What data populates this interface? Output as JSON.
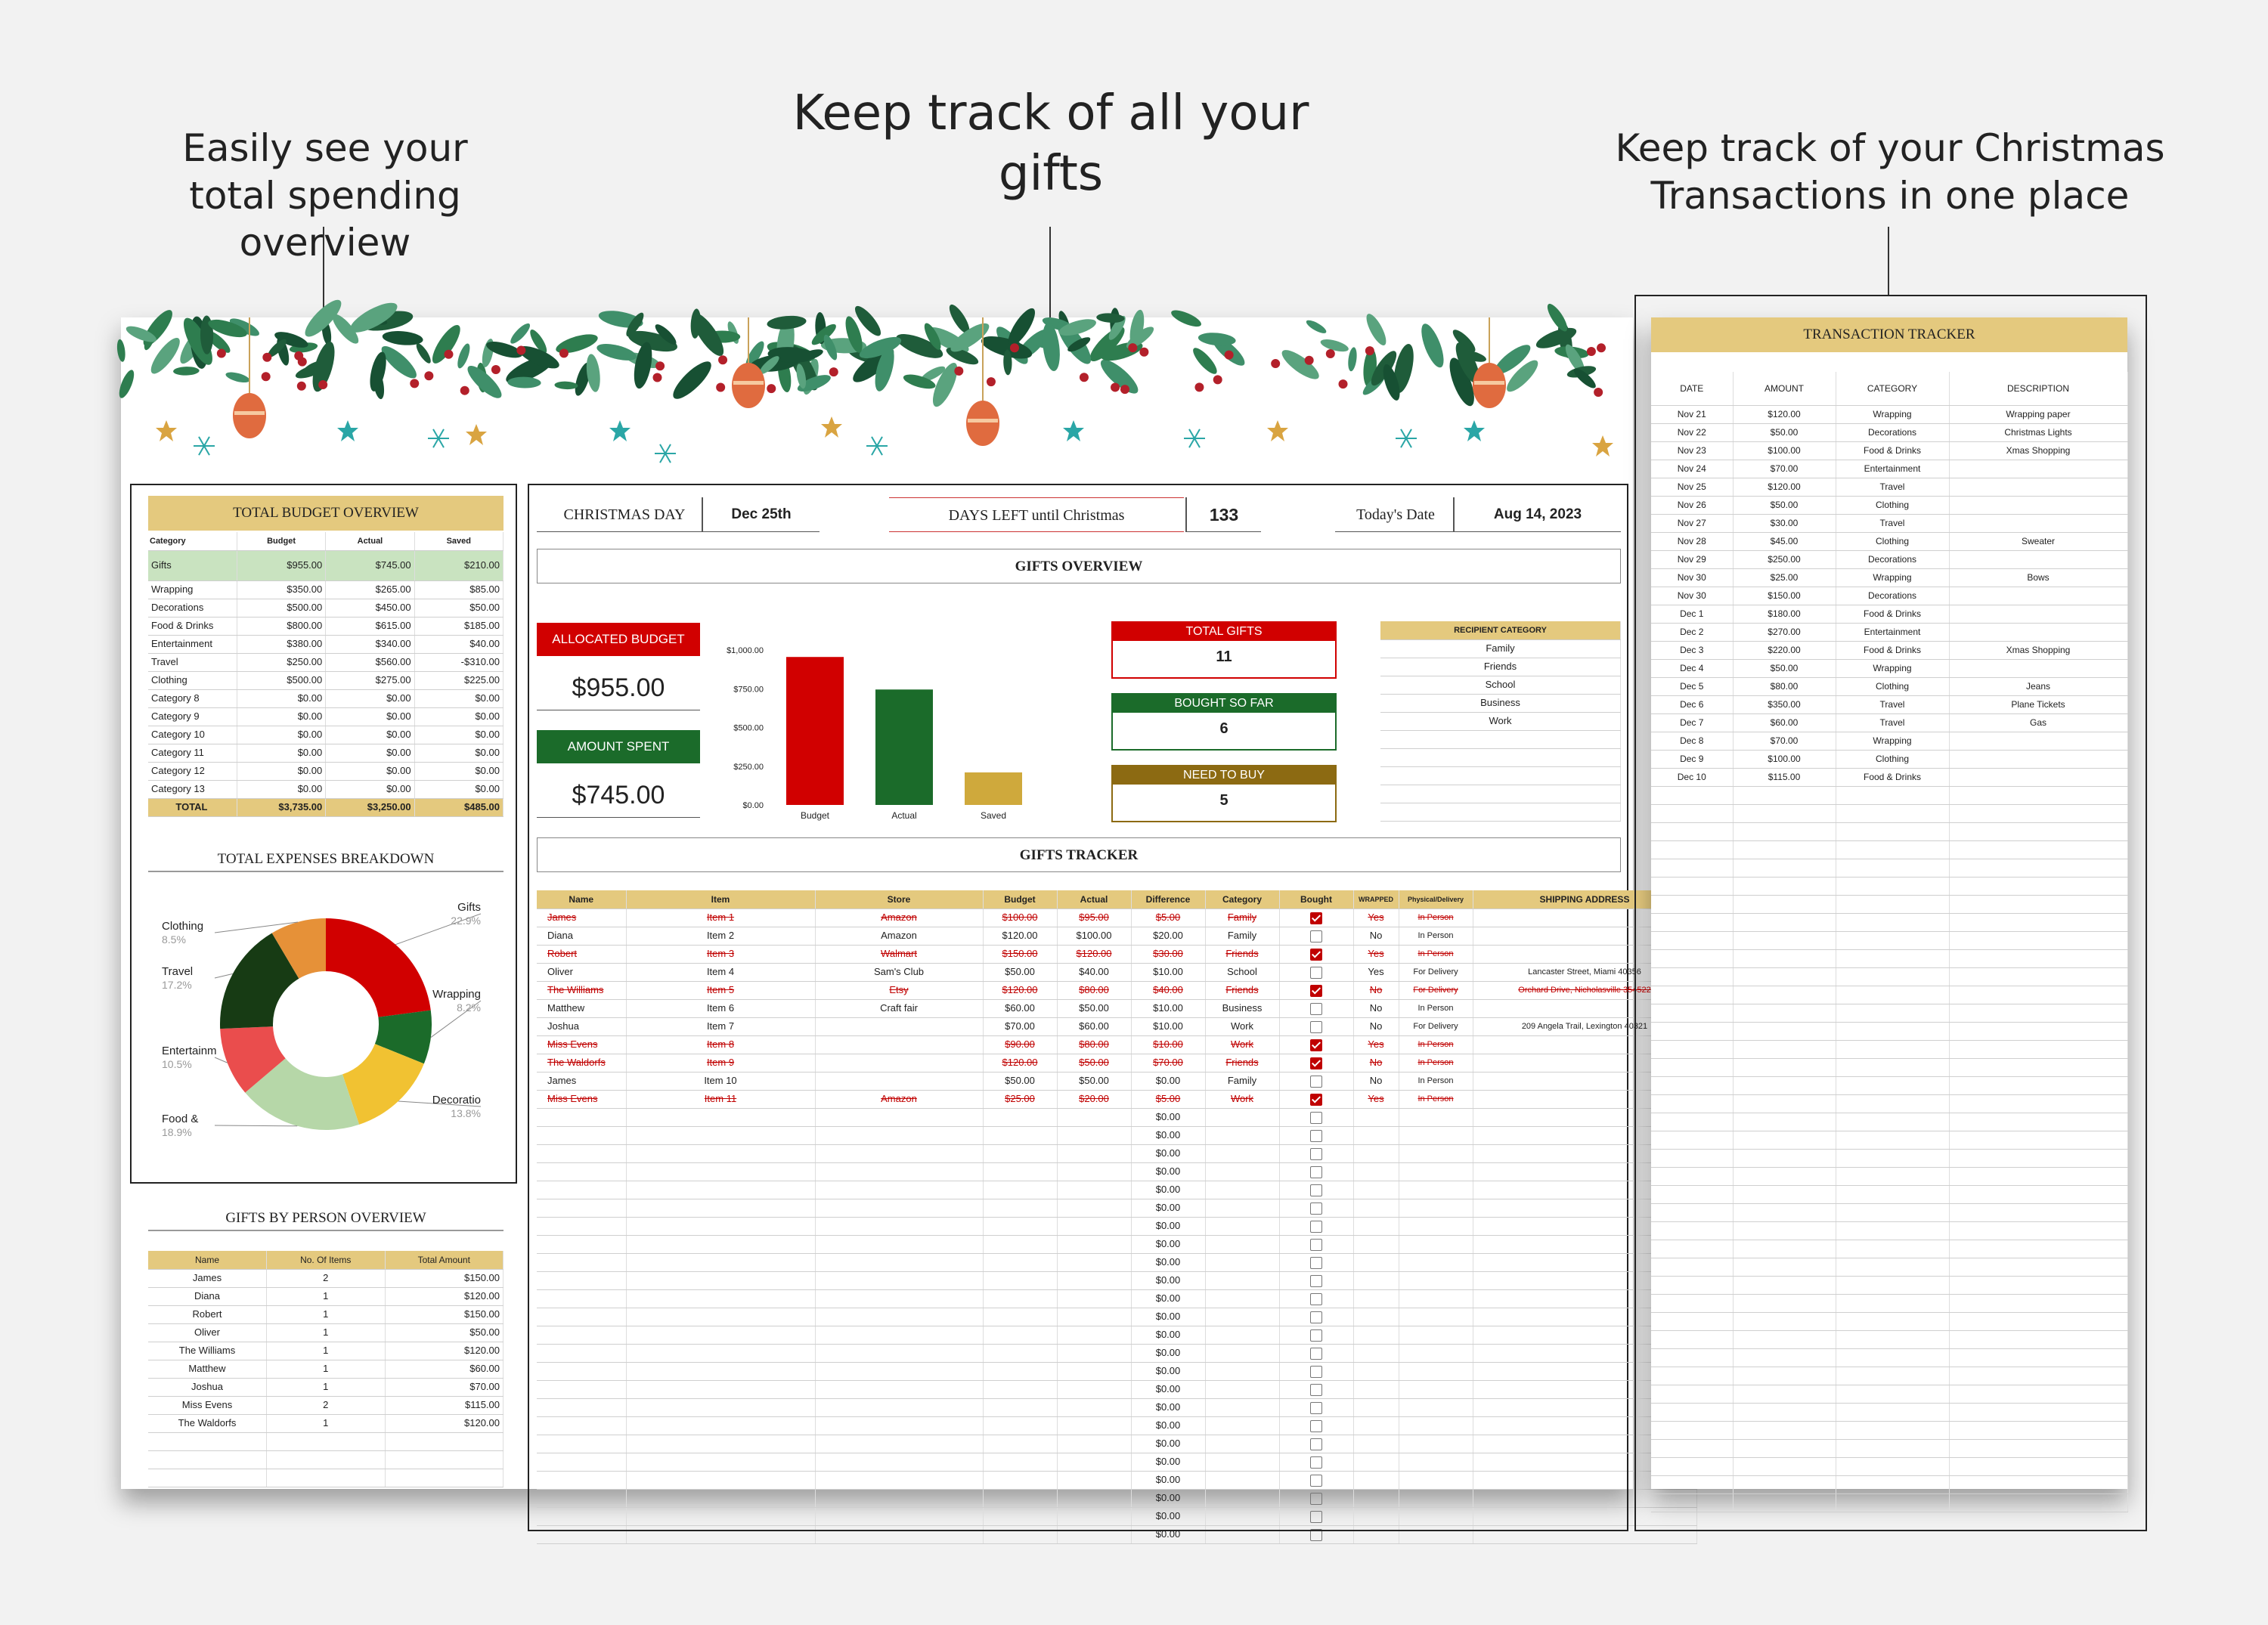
{
  "captions": {
    "left": "Easily see your total spending overview",
    "center": "Keep track of all your gifts",
    "right": "Keep track of your Christmas Transactions in one place"
  },
  "header": {
    "christmas_label": "CHRISTMAS DAY",
    "christmas_value": "Dec 25th",
    "days_label": "DAYS LEFT until Christmas",
    "days_value": "133",
    "today_label": "Today's Date",
    "today_value": "Aug 14, 2023"
  },
  "colors": {
    "red": "#d10000",
    "green": "#1b6b2a",
    "gold": "#e4c97e",
    "mustard": "#cfa93c",
    "olive": "#8c6a12"
  },
  "budget_overview": {
    "title": "TOTAL BUDGET OVERVIEW",
    "columns": [
      "Category",
      "Budget",
      "Actual",
      "Saved"
    ],
    "rows": [
      [
        "Gifts",
        "$955.00",
        "$745.00",
        "$210.00"
      ],
      [
        "Wrapping",
        "$350.00",
        "$265.00",
        "$85.00"
      ],
      [
        "Decorations",
        "$500.00",
        "$450.00",
        "$50.00"
      ],
      [
        "Food & Drinks",
        "$800.00",
        "$615.00",
        "$185.00"
      ],
      [
        "Entertainment",
        "$380.00",
        "$340.00",
        "$40.00"
      ],
      [
        "Travel",
        "$250.00",
        "$560.00",
        "-$310.00"
      ],
      [
        "Clothing",
        "$500.00",
        "$275.00",
        "$225.00"
      ],
      [
        "Category 8",
        "$0.00",
        "$0.00",
        "$0.00"
      ],
      [
        "Category 9",
        "$0.00",
        "$0.00",
        "$0.00"
      ],
      [
        "Category 10",
        "$0.00",
        "$0.00",
        "$0.00"
      ],
      [
        "Category 11",
        "$0.00",
        "$0.00",
        "$0.00"
      ],
      [
        "Category 12",
        "$0.00",
        "$0.00",
        "$0.00"
      ],
      [
        "Category 13",
        "$0.00",
        "$0.00",
        "$0.00"
      ]
    ],
    "total": [
      "TOTAL",
      "$3,735.00",
      "$3,250.00",
      "$485.00"
    ]
  },
  "expenses": {
    "title": "TOTAL EXPENSES BREAKDOWN",
    "slices": [
      {
        "label": "Gifts",
        "pct": "22.9%",
        "value": 22.9,
        "color": "#d10000"
      },
      {
        "label": "Wrapping",
        "pct": "8.2%",
        "value": 8.2,
        "color": "#1b6b2a"
      },
      {
        "label": "Decoratio",
        "pct": "13.8%",
        "value": 13.8,
        "color": "#f1c232"
      },
      {
        "label": "Food &",
        "pct": "18.9%",
        "value": 18.9,
        "color": "#b6d7a8"
      },
      {
        "label": "Entertainm",
        "pct": "10.5%",
        "value": 10.5,
        "color": "#ea4d4d"
      },
      {
        "label": "Travel",
        "pct": "17.2%",
        "value": 17.2,
        "color": "#173b14"
      },
      {
        "label": "Clothing",
        "pct": "8.5%",
        "value": 8.5,
        "color": "#e69138"
      }
    ]
  },
  "gifts_by_person": {
    "title": "GIFTS BY PERSON OVERVIEW",
    "columns": [
      "Name",
      "No. Of Items",
      "Total Amount"
    ],
    "rows": [
      [
        "James",
        "2",
        "$150.00"
      ],
      [
        "Diana",
        "1",
        "$120.00"
      ],
      [
        "Robert",
        "1",
        "$150.00"
      ],
      [
        "Oliver",
        "1",
        "$50.00"
      ],
      [
        "The Williams",
        "1",
        "$120.00"
      ],
      [
        "Matthew",
        "1",
        "$60.00"
      ],
      [
        "Joshua",
        "1",
        "$70.00"
      ],
      [
        "Miss Evens",
        "2",
        "$115.00"
      ],
      [
        "The Waldorfs",
        "1",
        "$120.00"
      ]
    ]
  },
  "gifts_overview": {
    "title": "GIFTS OVERVIEW",
    "allocated_label": "ALLOCATED BUDGET",
    "allocated_value": "$955.00",
    "spent_label": "AMOUNT SPENT",
    "spent_value": "$745.00",
    "total_gifts_label": "TOTAL GIFTS",
    "total_gifts_value": "11",
    "bought_label": "BOUGHT SO FAR",
    "bought_value": "6",
    "need_label": "NEED TO BUY",
    "need_value": "5",
    "recipient_title": "RECIPIENT CATEGORY",
    "recipients": [
      "Family",
      "Friends",
      "School",
      "Business",
      "Work"
    ]
  },
  "chart_data": {
    "type": "bar",
    "categories": [
      "Budget",
      "Actual",
      "Saved"
    ],
    "values": [
      955,
      745,
      210
    ],
    "ylim": [
      0,
      1000
    ],
    "yticks": [
      "$0.00",
      "$250.00",
      "$500.00",
      "$750.00",
      "$1,000.00"
    ],
    "colors": [
      "#d10000",
      "#1b6b2a",
      "#cfa93c"
    ],
    "grid": false,
    "legend": "none"
  },
  "gifts_tracker": {
    "title": "GIFTS TRACKER",
    "columns": [
      "Name",
      "Item",
      "Store",
      "Budget",
      "Actual",
      "Difference",
      "Category",
      "Bought",
      "WRAPPED",
      "Physical/Delivery",
      "SHIPPING ADDRESS"
    ],
    "rows": [
      {
        "name": "James",
        "item": "Item 1",
        "store": "Amazon",
        "budget": "$100.00",
        "actual": "$95.00",
        "diff": "$5.00",
        "cat": "Family",
        "bought": true,
        "wrapped": "Yes",
        "mode": "In Person",
        "addr": "",
        "done": true
      },
      {
        "name": "Diana",
        "item": "Item 2",
        "store": "Amazon",
        "budget": "$120.00",
        "actual": "$100.00",
        "diff": "$20.00",
        "cat": "Family",
        "bought": false,
        "wrapped": "No",
        "mode": "In Person",
        "addr": "",
        "done": false
      },
      {
        "name": "Robert",
        "item": "Item 3",
        "store": "Walmart",
        "budget": "$150.00",
        "actual": "$120.00",
        "diff": "$30.00",
        "cat": "Friends",
        "bought": true,
        "wrapped": "Yes",
        "mode": "In Person",
        "addr": "",
        "done": true
      },
      {
        "name": "Oliver",
        "item": "Item 4",
        "store": "Sam's Club",
        "budget": "$50.00",
        "actual": "$40.00",
        "diff": "$10.00",
        "cat": "School",
        "bought": false,
        "wrapped": "Yes",
        "mode": "For Delivery",
        "addr": "Lancaster Street, Miami 40356",
        "done": false
      },
      {
        "name": "The Williams",
        "item": "Item 5",
        "store": "Etsy",
        "budget": "$120.00",
        "actual": "$80.00",
        "diff": "$40.00",
        "cat": "Friends",
        "bought": true,
        "wrapped": "No",
        "mode": "For Delivery",
        "addr": "Orchard Drive, Nicholasville 354522",
        "done": true
      },
      {
        "name": "Matthew",
        "item": "Item 6",
        "store": "Craft fair",
        "budget": "$60.00",
        "actual": "$50.00",
        "diff": "$10.00",
        "cat": "Business",
        "bought": false,
        "wrapped": "No",
        "mode": "In Person",
        "addr": "",
        "done": false
      },
      {
        "name": "Joshua",
        "item": "Item 7",
        "store": "",
        "budget": "$70.00",
        "actual": "$60.00",
        "diff": "$10.00",
        "cat": "Work",
        "bought": false,
        "wrapped": "No",
        "mode": "For Delivery",
        "addr": "209 Angela Trail, Lexington 40321",
        "done": false
      },
      {
        "name": "Miss Evens",
        "item": "Item 8",
        "store": "",
        "budget": "$90.00",
        "actual": "$80.00",
        "diff": "$10.00",
        "cat": "Work",
        "bought": true,
        "wrapped": "Yes",
        "mode": "In Person",
        "addr": "",
        "done": true
      },
      {
        "name": "The Waldorfs",
        "item": "Item 9",
        "store": "",
        "budget": "$120.00",
        "actual": "$50.00",
        "diff": "$70.00",
        "cat": "Friends",
        "bought": true,
        "wrapped": "No",
        "mode": "In Person",
        "addr": "",
        "done": true
      },
      {
        "name": "James",
        "item": "Item 10",
        "store": "",
        "budget": "$50.00",
        "actual": "$50.00",
        "diff": "$0.00",
        "cat": "Family",
        "bought": false,
        "wrapped": "No",
        "mode": "In Person",
        "addr": "",
        "done": false
      },
      {
        "name": "Miss Evens",
        "item": "Item 11",
        "store": "Amazon",
        "budget": "$25.00",
        "actual": "$20.00",
        "diff": "$5.00",
        "cat": "Work",
        "bought": true,
        "wrapped": "Yes",
        "mode": "In Person",
        "addr": "",
        "done": true
      }
    ],
    "empty_diff": "$0.00"
  },
  "transactions": {
    "title": "TRANSACTION TRACKER",
    "columns": [
      "DATE",
      "AMOUNT",
      "CATEGORY",
      "DESCRIPTION"
    ],
    "rows": [
      [
        "Nov 21",
        "$120.00",
        "Wrapping",
        "Wrapping paper"
      ],
      [
        "Nov 22",
        "$50.00",
        "Decorations",
        "Christmas Lights"
      ],
      [
        "Nov 23",
        "$100.00",
        "Food & Drinks",
        "Xmas Shopping"
      ],
      [
        "Nov 24",
        "$70.00",
        "Entertainment",
        ""
      ],
      [
        "Nov 25",
        "$120.00",
        "Travel",
        ""
      ],
      [
        "Nov 26",
        "$50.00",
        "Clothing",
        ""
      ],
      [
        "Nov 27",
        "$30.00",
        "Travel",
        ""
      ],
      [
        "Nov 28",
        "$45.00",
        "Clothing",
        "Sweater"
      ],
      [
        "Nov 29",
        "$250.00",
        "Decorations",
        ""
      ],
      [
        "Nov 30",
        "$25.00",
        "Wrapping",
        "Bows"
      ],
      [
        "Nov 30",
        "$150.00",
        "Decorations",
        ""
      ],
      [
        "Dec 1",
        "$180.00",
        "Food & Drinks",
        ""
      ],
      [
        "Dec 2",
        "$270.00",
        "Entertainment",
        ""
      ],
      [
        "Dec 3",
        "$220.00",
        "Food & Drinks",
        "Xmas Shopping"
      ],
      [
        "Dec 4",
        "$50.00",
        "Wrapping",
        ""
      ],
      [
        "Dec 5",
        "$80.00",
        "Clothing",
        "Jeans"
      ],
      [
        "Dec 6",
        "$350.00",
        "Travel",
        "Plane Tickets"
      ],
      [
        "Dec 7",
        "$60.00",
        "Travel",
        "Gas"
      ],
      [
        "Dec 8",
        "$70.00",
        "Wrapping",
        ""
      ],
      [
        "Dec 9",
        "$100.00",
        "Clothing",
        ""
      ],
      [
        "Dec 10",
        "$115.00",
        "Food & Drinks",
        ""
      ]
    ]
  }
}
